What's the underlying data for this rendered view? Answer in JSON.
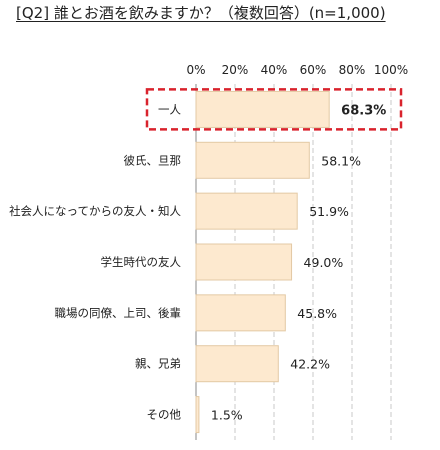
{
  "chart_data": {
    "type": "bar",
    "orientation": "horizontal",
    "title": "[Q2] 誰とお酒を飲みますか？（複数回答）(n=1,000)",
    "categories": [
      "一人",
      "彼氏、旦那",
      "社会人になってからの友人・知人",
      "学生時代の友人",
      "職場の同僚、上司、後輩",
      "親、兄弟",
      "その他"
    ],
    "values": [
      68.3,
      58.1,
      51.9,
      49.0,
      45.8,
      42.2,
      1.5
    ],
    "value_labels": [
      "68.3%",
      "58.1%",
      "51.9%",
      "49.0%",
      "45.8%",
      "42.2%",
      "1.5%"
    ],
    "xlim": [
      0,
      100
    ],
    "xticks": [
      "0%",
      "20%",
      "40%",
      "60%",
      "80%",
      "100%"
    ],
    "highlight_index": 0,
    "grid": true,
    "colors": {
      "bar_fill": "#fde9cf",
      "bar_stroke": "#e3c9a4",
      "highlight_border": "#d9232d",
      "grid": "#c8c8c8",
      "axis": "#888888"
    }
  }
}
